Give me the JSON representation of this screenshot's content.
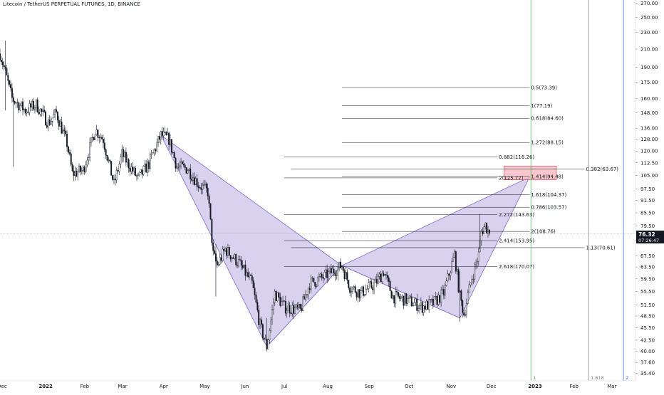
{
  "header": {
    "title": "Litecoin / TetherUS PERPETUAL FUTURES, 1D, BINANCE"
  },
  "price_axis": {
    "labels": [
      "270.00",
      "250.00",
      "230.00",
      "210.00",
      "190.00",
      "175.00",
      "160.00",
      "148.00",
      "136.00",
      "128.00",
      "120.00",
      "112.50",
      "105.00",
      "97.50",
      "91.50",
      "85.50",
      "79.50",
      "73.50",
      "67.50",
      "63.50",
      "59.50",
      "55.50",
      "51.50",
      "48.50",
      "45.50",
      "42.50",
      "40.00",
      "37.60",
      "35.40"
    ],
    "last_price": "76.32",
    "countdown": "07:26:47",
    "last_price_color": "#131722"
  },
  "time_axis": {
    "labels": [
      "Dec",
      "2022",
      "Feb",
      "Mar",
      "Apr",
      "May",
      "Jun",
      "Jul",
      "Aug",
      "Sep",
      "Oct",
      "Nov",
      "Dec",
      "2023",
      "Feb",
      "Mar"
    ]
  },
  "fib_levels": [
    {
      "label": "2.618(170.07)"
    },
    {
      "label": "2.414(153.95)"
    },
    {
      "label": "2.272(143.63)"
    },
    {
      "label": "2(125.77)"
    },
    {
      "label": "0.882(116.26)"
    },
    {
      "label": "2(108.76)"
    },
    {
      "label": "0.786(103.57)"
    },
    {
      "label": "1.618(104.37)"
    },
    {
      "label": "1.414(94.48)"
    },
    {
      "label": "1.272(88.15)"
    },
    {
      "label": "0.618(84.60)"
    },
    {
      "label": "1(77.19)"
    },
    {
      "label": "0.5(73.39)"
    },
    {
      "label": "1.13(70.61)"
    },
    {
      "label": "0.382(63.67)"
    }
  ],
  "vertical_markers": [
    {
      "label": "1",
      "color": "#4caf50"
    },
    {
      "label": "1.618",
      "color": "#787b86"
    },
    {
      "label": "2",
      "color": "#2962ff"
    }
  ],
  "colors": {
    "up": "#131722",
    "down": "#131722",
    "pattern_fill": "#9c88d6",
    "pattern_line": "#7e6cc9",
    "prz_fill": "#f4b6bd",
    "prz_line": "#e05a6a"
  },
  "chart_data": {
    "type": "candlestick",
    "symbol": "Litecoin / TetherUS PERPETUAL FUTURES",
    "interval": "1D",
    "exchange": "BINANCE",
    "last_price": 76.32,
    "y_scale": "log",
    "ylim": [
      34.0,
      275.0
    ],
    "x_range": [
      "2021-12-01",
      "2023-03-20"
    ],
    "close_path": [
      [
        "2021-12-01",
        205
      ],
      [
        "2021-12-04",
        190
      ],
      [
        "2021-12-10",
        160
      ],
      [
        "2021-12-20",
        150
      ],
      [
        "2021-12-28",
        155
      ],
      [
        "2022-01-06",
        140
      ],
      [
        "2022-01-12",
        148
      ],
      [
        "2022-01-20",
        125
      ],
      [
        "2022-01-24",
        106
      ],
      [
        "2022-02-01",
        108
      ],
      [
        "2022-02-10",
        135
      ],
      [
        "2022-02-16",
        128
      ],
      [
        "2022-02-24",
        100
      ],
      [
        "2022-03-02",
        118
      ],
      [
        "2022-03-14",
        103
      ],
      [
        "2022-03-22",
        112
      ],
      [
        "2022-03-31",
        131
      ],
      [
        "2022-04-06",
        128
      ],
      [
        "2022-04-12",
        110
      ],
      [
        "2022-04-20",
        109
      ],
      [
        "2022-04-28",
        100
      ],
      [
        "2022-05-05",
        96
      ],
      [
        "2022-05-09",
        68
      ],
      [
        "2022-05-12",
        64
      ],
      [
        "2022-05-18",
        70
      ],
      [
        "2022-05-28",
        65
      ],
      [
        "2022-06-07",
        58
      ],
      [
        "2022-06-13",
        46
      ],
      [
        "2022-06-18",
        41
      ],
      [
        "2022-06-24",
        55
      ],
      [
        "2022-07-01",
        51
      ],
      [
        "2022-07-13",
        50
      ],
      [
        "2022-07-20",
        58
      ],
      [
        "2022-07-30",
        60
      ],
      [
        "2022-08-13",
        64
      ],
      [
        "2022-08-19",
        57
      ],
      [
        "2022-08-27",
        55
      ],
      [
        "2022-09-07",
        58
      ],
      [
        "2022-09-13",
        62
      ],
      [
        "2022-09-20",
        54
      ],
      [
        "2022-09-30",
        53
      ],
      [
        "2022-10-12",
        51
      ],
      [
        "2022-10-20",
        52
      ],
      [
        "2022-10-28",
        55
      ],
      [
        "2022-11-05",
        68
      ],
      [
        "2022-11-09",
        54
      ],
      [
        "2022-11-12",
        49
      ],
      [
        "2022-11-18",
        60
      ],
      [
        "2022-11-23",
        68
      ],
      [
        "2022-11-25",
        77
      ],
      [
        "2022-11-28",
        80
      ],
      [
        "2022-12-01",
        76.32
      ]
    ],
    "harmonic_pattern": {
      "X": [
        "2022-03-31",
        131.0
      ],
      "A": [
        "2022-06-18",
        41.0
      ],
      "B": [
        "2022-08-13",
        64.0
      ],
      "C": [
        "2022-11-09",
        48.0
      ],
      "D": [
        "2022-12-31",
        104.0
      ]
    },
    "prz": {
      "start": "2022-12-12",
      "end": "2023-01-20",
      "low": 102.5,
      "high": 110.5
    },
    "fib_retracements": [
      {
        "ratio": 0.382,
        "price": 63.67,
        "start": "2022-07-01",
        "end": "2022-12-07"
      },
      {
        "ratio": 0.5,
        "price": 73.39,
        "start": "2022-07-01",
        "end": "2022-12-07"
      },
      {
        "ratio": 0.618,
        "price": 84.6,
        "start": "2022-07-01",
        "end": "2022-12-07"
      },
      {
        "ratio": 0.786,
        "price": 103.57,
        "start": "2022-07-01",
        "end": "2022-12-07"
      },
      {
        "ratio": 0.882,
        "price": 116.26,
        "start": "2022-07-01",
        "end": "2022-12-07"
      },
      {
        "ratio": 1,
        "price": 77.19,
        "start": "2022-08-13",
        "end": "2022-12-31"
      },
      {
        "ratio": 1.272,
        "price": 88.15,
        "start": "2022-08-13",
        "end": "2022-12-31"
      },
      {
        "ratio": 1.414,
        "price": 94.48,
        "start": "2022-08-13",
        "end": "2022-12-31"
      },
      {
        "ratio": 1.618,
        "price": 104.37,
        "start": "2022-08-13",
        "end": "2022-12-31"
      },
      {
        "ratio": 2,
        "price": 125.77,
        "start": "2022-08-13",
        "end": "2022-12-31"
      },
      {
        "ratio": 2.272,
        "price": 143.63,
        "start": "2022-08-13",
        "end": "2022-12-31"
      },
      {
        "ratio": 2.414,
        "price": 153.95,
        "start": "2022-08-13",
        "end": "2022-12-31"
      },
      {
        "ratio": 2.618,
        "price": 170.07,
        "start": "2022-08-13",
        "end": "2022-12-31"
      },
      {
        "ratio": 1.13,
        "price": 70.61,
        "start": "2022-07-06",
        "end": "2023-02-10"
      },
      {
        "ratio": 2,
        "price": 108.76,
        "start": "2022-07-06",
        "end": "2023-02-10"
      }
    ],
    "vertical_lines": [
      {
        "label": "1",
        "date": "2023-01-01"
      },
      {
        "label": "1.618",
        "date": "2023-02-13"
      },
      {
        "label": "2",
        "date": "2023-03-11"
      }
    ]
  }
}
